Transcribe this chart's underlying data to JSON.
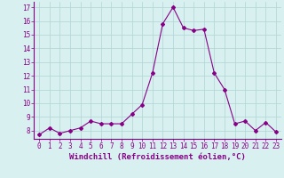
{
  "x": [
    0,
    1,
    2,
    3,
    4,
    5,
    6,
    7,
    8,
    9,
    10,
    11,
    12,
    13,
    14,
    15,
    16,
    17,
    18,
    19,
    20,
    21,
    22,
    23
  ],
  "y": [
    7.7,
    8.2,
    7.8,
    8.0,
    8.2,
    8.7,
    8.5,
    8.5,
    8.5,
    9.2,
    9.9,
    12.2,
    15.8,
    17.0,
    15.5,
    15.3,
    15.4,
    12.2,
    11.0,
    8.5,
    8.7,
    8.0,
    8.6,
    7.9
  ],
  "xlim": [
    -0.5,
    23.5
  ],
  "ylim": [
    7.4,
    17.4
  ],
  "yticks": [
    8,
    9,
    10,
    11,
    12,
    13,
    14,
    15,
    16,
    17
  ],
  "xticks": [
    0,
    1,
    2,
    3,
    4,
    5,
    6,
    7,
    8,
    9,
    10,
    11,
    12,
    13,
    14,
    15,
    16,
    17,
    18,
    19,
    20,
    21,
    22,
    23
  ],
  "xlabel": "Windchill (Refroidissement éolien,°C)",
  "line_color": "#880088",
  "marker": "D",
  "marker_size": 2.0,
  "line_width": 0.8,
  "bg_color": "#d8f0f0",
  "grid_color": "#b0d4d4",
  "xlabel_fontsize": 6.5,
  "tick_fontsize": 5.5
}
